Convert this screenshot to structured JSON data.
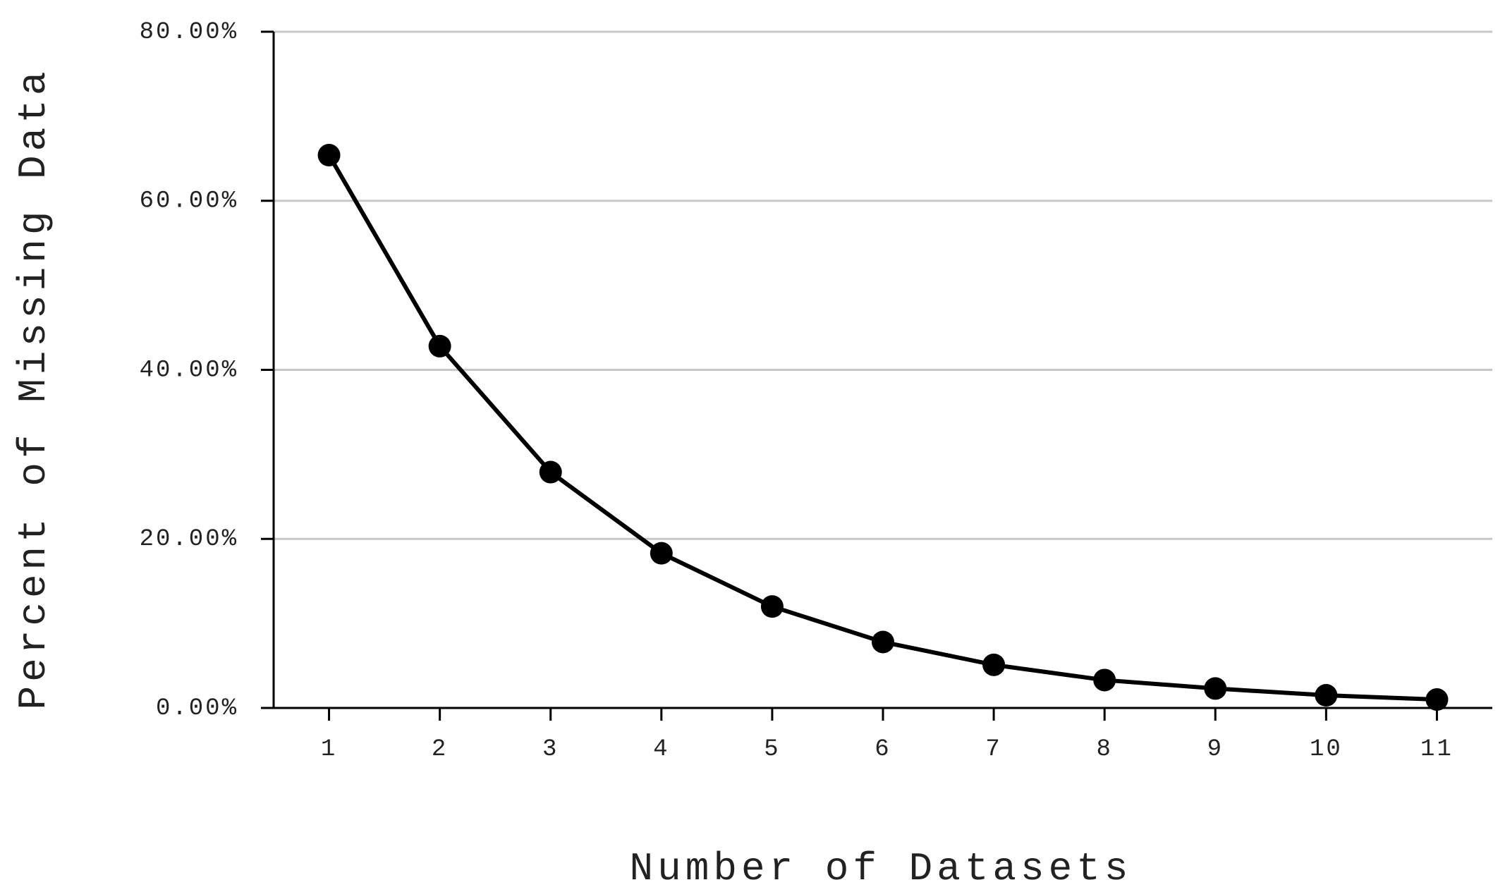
{
  "chart_data": {
    "type": "line",
    "x_label": "Number of Datasets",
    "y_label": "Percent of Missing Data",
    "categories": [
      "1",
      "2",
      "3",
      "4",
      "5",
      "6",
      "7",
      "8",
      "9",
      "10",
      "11"
    ],
    "values": [
      65.4,
      42.8,
      27.9,
      18.3,
      12.0,
      7.8,
      5.1,
      3.3,
      2.3,
      1.5,
      1.0
    ],
    "color": "#000000",
    "ylim": [
      0,
      80
    ],
    "yticks": [
      {
        "value": 0,
        "label": "0.00%"
      },
      {
        "value": 20,
        "label": "20.00%"
      },
      {
        "value": 40,
        "label": "40.00%"
      },
      {
        "value": 60,
        "label": "60.00%"
      },
      {
        "value": 80,
        "label": "80.00%"
      }
    ],
    "grid": true
  }
}
